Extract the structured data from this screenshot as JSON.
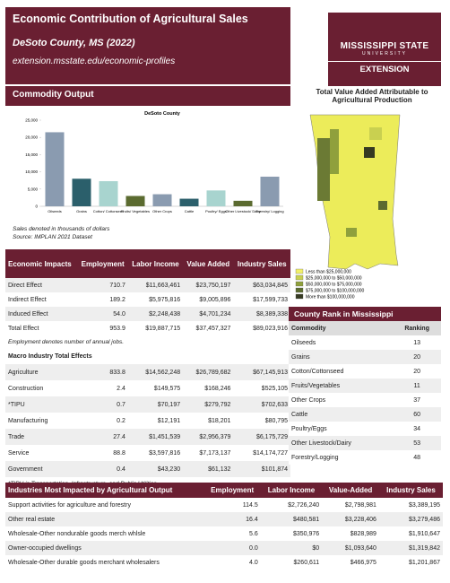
{
  "header": {
    "title": "Economic Contribution of Agricultural Sales",
    "subtitle": "DeSoto County, MS (2022)",
    "url": "extension.msstate.edu/economic-profiles"
  },
  "logo": {
    "line1": "MISSISSIPPI STATE",
    "line2": "UNIVERSITY",
    "line3": "EXTENSION"
  },
  "map": {
    "title": "Total Value Added Attributable to Agricultural Production",
    "legend": [
      {
        "label": "Less than $25,000,000",
        "color": "#f2f06a"
      },
      {
        "label": "$25,000,000 to $50,000,000",
        "color": "#c9d050"
      },
      {
        "label": "$50,000,000 to $75,000,000",
        "color": "#8fa03c"
      },
      {
        "label": "$75,000,000 to $100,000,000",
        "color": "#5b6b30"
      },
      {
        "label": "More than $100,000,000",
        "color": "#363a22"
      }
    ]
  },
  "commodity_output": {
    "heading": "Commodity Output",
    "chart": {
      "type": "bar",
      "title": "DeSoto County",
      "categories": [
        "Oilseeds",
        "Grains",
        "Cotton/ Cottonseed",
        "Fruits/ Vegetables",
        "Other Crops",
        "Cattle",
        "Poultry/ Eggs",
        "Other Livestock/ Dairy",
        "Forestry/ Logging"
      ],
      "values": [
        21500,
        8000,
        7300,
        3000,
        3500,
        2200,
        4600,
        1600,
        8600
      ],
      "colors": [
        "#8a9bb0",
        "#2b5f6b",
        "#a8d4cf",
        "#5b6b30",
        "#8a9bb0",
        "#2b5f6b",
        "#a8d4cf",
        "#5b6b30",
        "#8a9bb0"
      ],
      "ylim": [
        0,
        25000
      ],
      "yticks": [
        0,
        {
          "value": 5000,
          "label": "5,000"
        },
        {
          "value": 10000,
          "label": "10,000"
        },
        {
          "value": 15000,
          "label": "15,000"
        },
        {
          "value": 20000,
          "label": "20,000"
        },
        {
          "value": 25000,
          "label": "25,000"
        }
      ]
    },
    "note1": "Sales denoted in thousands of dollars",
    "note2": "Source: IMPLAN 2021 Dataset"
  },
  "impacts": {
    "header": [
      "Economic Impacts",
      "Employment",
      "Labor Income",
      "Value Added",
      "Industry Sales"
    ],
    "rows": [
      [
        "Direct Effect",
        "710.7",
        "$11,663,461",
        "$23,750,197",
        "$63,034,845"
      ],
      [
        "Indirect Effect",
        "189.2",
        "$5,975,816",
        "$9,005,896",
        "$17,599,733"
      ],
      [
        "Induced Effect",
        "54.0",
        "$2,248,438",
        "$4,701,234",
        "$8,389,338"
      ],
      [
        "Total Effect",
        "953.9",
        "$19,887,715",
        "$37,457,327",
        "$89,023,916"
      ]
    ],
    "note": "Employment denotes number of annual jobs.",
    "macro_heading": "Macro Industry Total Effects",
    "macro_rows": [
      [
        "Agriculture",
        "833.8",
        "$14,562,248",
        "$26,789,682",
        "$67,145,913"
      ],
      [
        "Construction",
        "2.4",
        "$149,575",
        "$168,246",
        "$525,105"
      ],
      [
        "*TIPU",
        "0.7",
        "$70,197",
        "$279,792",
        "$702,633"
      ],
      [
        "Manufacturing",
        "0.2",
        "$12,191",
        "$18,201",
        "$80,795"
      ],
      [
        "Trade",
        "27.4",
        "$1,451,539",
        "$2,956,379",
        "$6,175,729"
      ],
      [
        "Service",
        "88.8",
        "$3,597,816",
        "$7,173,137",
        "$14,174,727"
      ],
      [
        "Government",
        "0.4",
        "$43,230",
        "$61,132",
        "$101,874"
      ]
    ],
    "macro_note": "*TIPU is Transportation, Infrastructure, and Public Utilities"
  },
  "rank": {
    "heading": "County Rank in Mississippi",
    "header": [
      "Commodity",
      "Ranking"
    ],
    "rows": [
      [
        "Oilseeds",
        "13"
      ],
      [
        "Grains",
        "20"
      ],
      [
        "Cotton/Cottonseed",
        "20"
      ],
      [
        "Fruits/Vegetables",
        "11"
      ],
      [
        "Other Crops",
        "37"
      ],
      [
        "Cattle",
        "60"
      ],
      [
        "Poultry/Eggs",
        "34"
      ],
      [
        "Other Livestock/Dairy",
        "53"
      ],
      [
        "Forestry/Logging",
        "48"
      ]
    ]
  },
  "industries": {
    "header": [
      "Industries Most Impacted by Agricultural Output",
      "Employment",
      "Labor Income",
      "Value-Added",
      "Industry Sales"
    ],
    "rows": [
      [
        "Support activities for agriculture and forestry",
        "114.5",
        "$2,726,240",
        "$2,798,981",
        "$3,389,195"
      ],
      [
        "Other real estate",
        "16.4",
        "$480,581",
        "$3,228,406",
        "$3,279,486"
      ],
      [
        "Wholesale-Other nondurable goods merch whlsle",
        "5.6",
        "$350,976",
        "$828,989",
        "$1,910,647"
      ],
      [
        "Owner-occupied dwellings",
        "0.0",
        "$0",
        "$1,093,640",
        "$1,319,842"
      ],
      [
        "Wholesale-Other durable goods merchant wholesalers",
        "4.0",
        "$260,611",
        "$466,975",
        "$1,201,867"
      ]
    ]
  }
}
